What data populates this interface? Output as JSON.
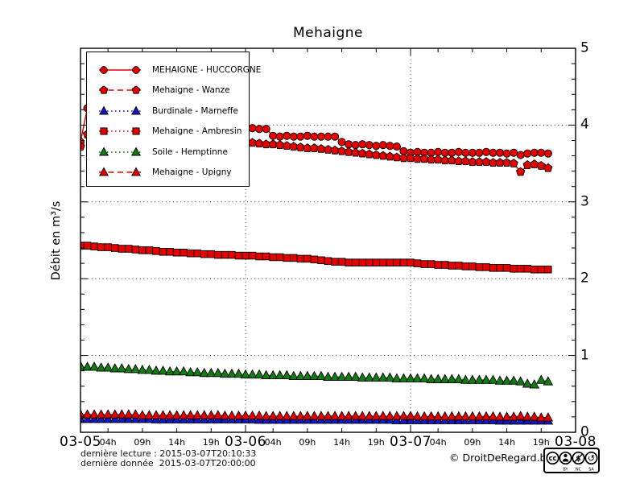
{
  "title": "Mehaigne",
  "ylabel": "Débit en m³/s",
  "footer": {
    "last_read": "dernière lecture : 2015-03-07T20:10:33",
    "last_data": "dernière donnée  2015-03-07T20:00:00",
    "copyright": "© DroitDeRegard.be",
    "badge": {
      "cc": "cc",
      "by": "BY",
      "nc": "NC",
      "sa": "SA"
    }
  },
  "chart_data": {
    "type": "line",
    "title": "Mehaigne",
    "xlabel": "",
    "ylabel": "Débit en m³/s",
    "ylim": [
      0,
      5
    ],
    "grid": true,
    "legend_position": "top-left",
    "x_start": "2015-03-05T00:00",
    "x_end": "2015-03-08T00:00",
    "x_hours_total": 72,
    "x_ticks": {
      "days": [
        {
          "hour": 0,
          "label": "03-05"
        },
        {
          "hour": 24,
          "label": "03-06"
        },
        {
          "hour": 48,
          "label": "03-07"
        },
        {
          "hour": 72,
          "label": "03-08"
        }
      ],
      "hours": [
        {
          "hour": 4,
          "label": "04h"
        },
        {
          "hour": 9,
          "label": "09h"
        },
        {
          "hour": 14,
          "label": "14h"
        },
        {
          "hour": 19,
          "label": "19h"
        },
        {
          "hour": 28,
          "label": "04h"
        },
        {
          "hour": 33,
          "label": "09h"
        },
        {
          "hour": 38,
          "label": "14h"
        },
        {
          "hour": 43,
          "label": "19h"
        },
        {
          "hour": 52,
          "label": "04h"
        },
        {
          "hour": 57,
          "label": "09h"
        },
        {
          "hour": 62,
          "label": "14h"
        },
        {
          "hour": 67,
          "label": "19h"
        }
      ]
    },
    "y_ticks": {
      "major": [
        0,
        1,
        2,
        3,
        4,
        5
      ],
      "minor_step": 0.2
    },
    "interval_hours": 1,
    "series": [
      {
        "name": "MEHAIGNE - HUCCORGNE",
        "marker": "circle",
        "line": "solid",
        "color": "#e60000",
        "values": [
          3.78,
          4.22,
          4.1,
          4.0,
          3.97,
          3.95,
          3.93,
          3.92,
          3.91,
          3.9,
          3.89,
          3.89,
          3.88,
          3.88,
          3.87,
          3.87,
          3.86,
          3.86,
          3.86,
          3.87,
          3.89,
          3.91,
          3.93,
          3.94,
          3.95,
          3.96,
          3.95,
          3.95,
          3.86,
          3.85,
          3.86,
          3.85,
          3.85,
          3.86,
          3.85,
          3.85,
          3.85,
          3.85,
          3.78,
          3.75,
          3.74,
          3.75,
          3.74,
          3.73,
          3.74,
          3.73,
          3.72,
          3.66,
          3.64,
          3.65,
          3.64,
          3.64,
          3.65,
          3.64,
          3.64,
          3.65,
          3.64,
          3.64,
          3.64,
          3.65,
          3.64,
          3.64,
          3.63,
          3.64,
          3.61,
          3.63,
          3.64,
          3.64,
          3.63
        ]
      },
      {
        "name": "Mehaigne - Wanze",
        "marker": "pentagon",
        "line": "dashed",
        "color": "#e60000",
        "values": [
          3.72,
          3.88,
          3.83,
          3.82,
          3.81,
          3.81,
          3.8,
          3.8,
          3.79,
          3.79,
          3.79,
          3.78,
          3.78,
          3.78,
          3.78,
          3.77,
          3.77,
          3.77,
          3.77,
          3.77,
          3.77,
          3.78,
          3.78,
          3.78,
          3.78,
          3.77,
          3.76,
          3.75,
          3.75,
          3.74,
          3.73,
          3.72,
          3.71,
          3.7,
          3.7,
          3.69,
          3.68,
          3.67,
          3.66,
          3.65,
          3.64,
          3.63,
          3.62,
          3.61,
          3.6,
          3.59,
          3.58,
          3.57,
          3.57,
          3.56,
          3.56,
          3.55,
          3.55,
          3.54,
          3.54,
          3.53,
          3.53,
          3.52,
          3.52,
          3.52,
          3.51,
          3.51,
          3.51,
          3.5,
          3.39,
          3.48,
          3.49,
          3.47,
          3.44
        ]
      },
      {
        "name": "Burdinale - Marneffe",
        "marker": "triangle",
        "line": "dotted",
        "color": "#1515cc",
        "values": [
          0.17,
          0.17,
          0.17,
          0.17,
          0.17,
          0.17,
          0.17,
          0.17,
          0.17,
          0.17,
          0.17,
          0.165,
          0.165,
          0.165,
          0.165,
          0.165,
          0.165,
          0.165,
          0.165,
          0.165,
          0.165,
          0.165,
          0.165,
          0.165,
          0.165,
          0.165,
          0.16,
          0.16,
          0.16,
          0.16,
          0.16,
          0.16,
          0.16,
          0.16,
          0.16,
          0.16,
          0.16,
          0.16,
          0.16,
          0.16,
          0.16,
          0.16,
          0.16,
          0.16,
          0.16,
          0.16,
          0.155,
          0.155,
          0.155,
          0.155,
          0.155,
          0.155,
          0.155,
          0.155,
          0.155,
          0.155,
          0.155,
          0.155,
          0.155,
          0.155,
          0.155,
          0.15,
          0.15,
          0.15,
          0.15,
          0.15,
          0.15,
          0.15,
          0.15
        ]
      },
      {
        "name": "Mehaigne - Ambresin",
        "marker": "square",
        "line": "dotted",
        "color": "#e60000",
        "values": [
          2.43,
          2.43,
          2.42,
          2.41,
          2.41,
          2.4,
          2.39,
          2.39,
          2.38,
          2.37,
          2.37,
          2.36,
          2.35,
          2.35,
          2.34,
          2.34,
          2.33,
          2.33,
          2.32,
          2.32,
          2.31,
          2.31,
          2.31,
          2.3,
          2.3,
          2.3,
          2.29,
          2.29,
          2.28,
          2.28,
          2.27,
          2.27,
          2.26,
          2.26,
          2.25,
          2.24,
          2.23,
          2.22,
          2.22,
          2.21,
          2.21,
          2.21,
          2.21,
          2.21,
          2.21,
          2.21,
          2.21,
          2.21,
          2.21,
          2.2,
          2.19,
          2.19,
          2.18,
          2.18,
          2.17,
          2.17,
          2.16,
          2.16,
          2.15,
          2.15,
          2.14,
          2.14,
          2.14,
          2.13,
          2.13,
          2.13,
          2.12,
          2.12,
          2.12
        ]
      },
      {
        "name": "Soile - Hemptinne",
        "marker": "triangle",
        "line": "dotted",
        "color": "#0f7d0f",
        "values": [
          0.86,
          0.85,
          0.85,
          0.84,
          0.84,
          0.83,
          0.83,
          0.82,
          0.82,
          0.81,
          0.81,
          0.8,
          0.8,
          0.79,
          0.79,
          0.79,
          0.78,
          0.78,
          0.77,
          0.77,
          0.77,
          0.76,
          0.76,
          0.76,
          0.75,
          0.75,
          0.75,
          0.74,
          0.74,
          0.74,
          0.74,
          0.73,
          0.73,
          0.73,
          0.73,
          0.73,
          0.72,
          0.72,
          0.72,
          0.72,
          0.72,
          0.71,
          0.71,
          0.71,
          0.71,
          0.71,
          0.7,
          0.7,
          0.7,
          0.7,
          0.7,
          0.69,
          0.69,
          0.69,
          0.69,
          0.69,
          0.68,
          0.68,
          0.68,
          0.68,
          0.68,
          0.67,
          0.67,
          0.67,
          0.66,
          0.63,
          0.62,
          0.68,
          0.66
        ]
      },
      {
        "name": "Mehaigne - Upigny",
        "marker": "triangle",
        "line": "dashed",
        "color": "#e60000",
        "values": [
          0.23,
          0.23,
          0.23,
          0.23,
          0.23,
          0.23,
          0.23,
          0.23,
          0.23,
          0.22,
          0.22,
          0.22,
          0.22,
          0.22,
          0.22,
          0.22,
          0.22,
          0.22,
          0.22,
          0.22,
          0.22,
          0.215,
          0.215,
          0.215,
          0.215,
          0.215,
          0.215,
          0.21,
          0.21,
          0.21,
          0.21,
          0.21,
          0.21,
          0.21,
          0.21,
          0.21,
          0.21,
          0.21,
          0.21,
          0.21,
          0.21,
          0.21,
          0.21,
          0.21,
          0.21,
          0.21,
          0.21,
          0.21,
          0.21,
          0.205,
          0.205,
          0.205,
          0.205,
          0.205,
          0.205,
          0.205,
          0.205,
          0.205,
          0.205,
          0.205,
          0.205,
          0.2,
          0.2,
          0.2,
          0.21,
          0.2,
          0.2,
          0.19,
          0.19
        ]
      }
    ]
  }
}
